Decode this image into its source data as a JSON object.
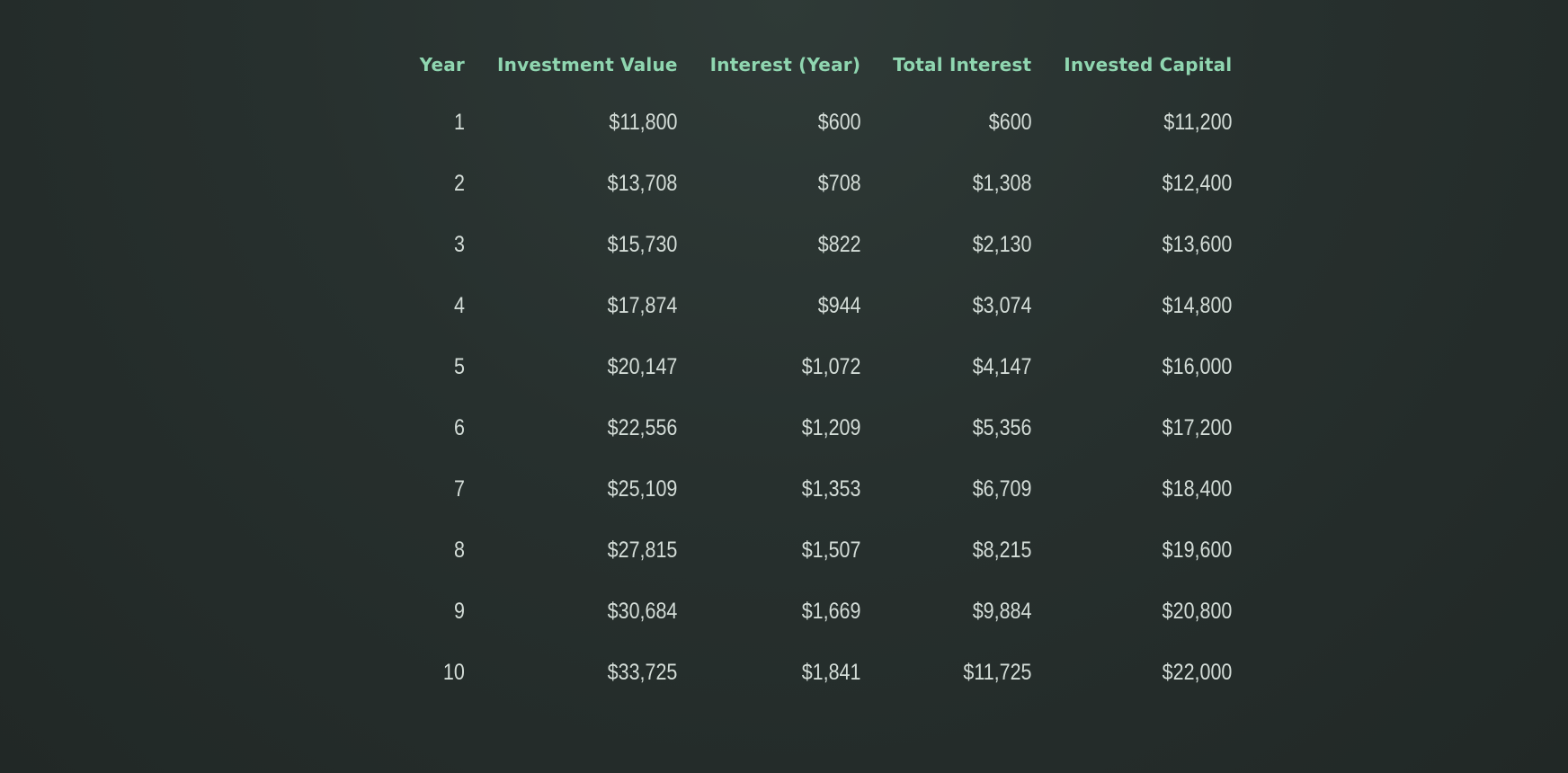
{
  "table": {
    "headers": [
      "Year",
      "Investment Value",
      "Interest (Year)",
      "Total Interest",
      "Invested Capital"
    ],
    "rows": [
      [
        "1",
        "$11,800",
        "$600",
        "$600",
        "$11,200"
      ],
      [
        "2",
        "$13,708",
        "$708",
        "$1,308",
        "$12,400"
      ],
      [
        "3",
        "$15,730",
        "$822",
        "$2,130",
        "$13,600"
      ],
      [
        "4",
        "$17,874",
        "$944",
        "$3,074",
        "$14,800"
      ],
      [
        "5",
        "$20,147",
        "$1,072",
        "$4,147",
        "$16,000"
      ],
      [
        "6",
        "$22,556",
        "$1,209",
        "$5,356",
        "$17,200"
      ],
      [
        "7",
        "$25,109",
        "$1,353",
        "$6,709",
        "$18,400"
      ],
      [
        "8",
        "$27,815",
        "$1,507",
        "$8,215",
        "$19,600"
      ],
      [
        "9",
        "$30,684",
        "$1,669",
        "$9,884",
        "$20,800"
      ],
      [
        "10",
        "$33,725",
        "$1,841",
        "$11,725",
        "$22,000"
      ]
    ]
  },
  "colors": {
    "header_text": "#8fd6b0",
    "cell_text": "#d4ddd8",
    "background": "#27302e"
  }
}
